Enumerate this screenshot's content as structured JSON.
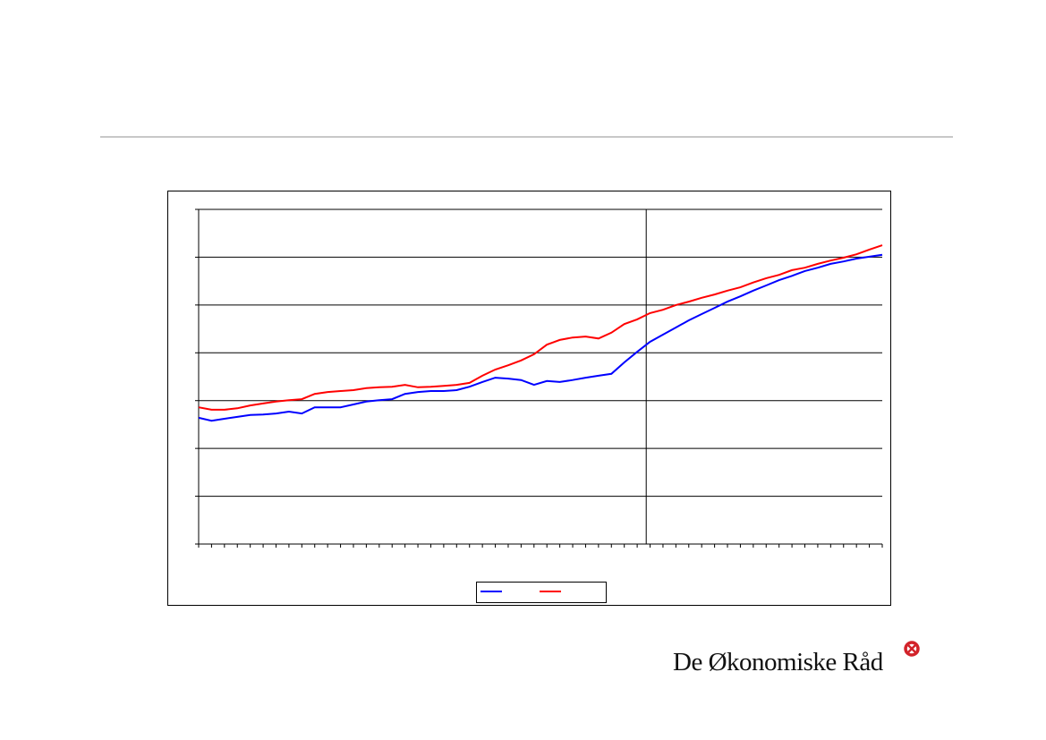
{
  "logo": "De Økonomiske Råd",
  "chart_data": {
    "type": "line",
    "x": [
      0,
      1,
      2,
      3,
      4,
      5,
      6,
      7,
      8,
      9,
      10,
      11,
      12,
      13,
      14,
      15,
      16,
      17,
      18,
      19,
      20,
      21,
      22,
      23,
      24,
      25,
      26,
      27,
      28,
      29,
      30,
      31,
      32,
      33,
      34,
      35,
      36,
      37,
      38,
      39,
      40,
      41,
      42,
      43,
      44,
      45,
      46,
      47,
      48,
      49,
      50,
      51,
      52,
      53
    ],
    "xlim": [
      0,
      53
    ],
    "xticks": [
      0,
      1,
      2,
      3,
      4,
      5,
      6,
      7,
      8,
      9,
      10,
      11,
      12,
      13,
      14,
      15,
      16,
      17,
      18,
      19,
      20,
      21,
      22,
      23,
      24,
      25,
      26,
      27,
      28,
      29,
      30,
      31,
      32,
      33,
      34,
      35,
      36,
      37,
      38,
      39,
      40,
      41,
      42,
      43,
      44,
      45,
      46,
      47,
      48,
      49,
      50,
      51,
      52,
      53
    ],
    "ylim": [
      0,
      7
    ],
    "yticks": [
      0,
      1,
      2,
      3,
      4,
      5,
      6,
      7
    ],
    "grid": true,
    "vline_x": 34.7,
    "series": [
      {
        "color": "#0000ff",
        "values": [
          2.64,
          2.58,
          2.62,
          2.66,
          2.7,
          2.71,
          2.73,
          2.77,
          2.73,
          2.86,
          2.86,
          2.86,
          2.92,
          2.98,
          3.01,
          3.03,
          3.14,
          3.18,
          3.2,
          3.2,
          3.22,
          3.29,
          3.39,
          3.48,
          3.46,
          3.43,
          3.33,
          3.41,
          3.39,
          3.43,
          3.48,
          3.52,
          3.56,
          3.8,
          4.02,
          4.23,
          4.38,
          4.53,
          4.68,
          4.81,
          4.94,
          5.07,
          5.18,
          5.3,
          5.41,
          5.52,
          5.61,
          5.71,
          5.78,
          5.86,
          5.91,
          5.97,
          6.01,
          6.05
        ]
      },
      {
        "color": "#ff0000",
        "values": [
          2.86,
          2.81,
          2.81,
          2.84,
          2.9,
          2.94,
          2.98,
          3.01,
          3.03,
          3.14,
          3.18,
          3.2,
          3.22,
          3.26,
          3.28,
          3.29,
          3.33,
          3.28,
          3.29,
          3.31,
          3.33,
          3.37,
          3.52,
          3.65,
          3.74,
          3.84,
          3.97,
          4.17,
          4.27,
          4.32,
          4.34,
          4.3,
          4.42,
          4.6,
          4.7,
          4.83,
          4.9,
          5.0,
          5.07,
          5.15,
          5.22,
          5.3,
          5.37,
          5.47,
          5.56,
          5.63,
          5.73,
          5.78,
          5.86,
          5.93,
          5.99,
          6.06,
          6.16,
          6.25
        ]
      }
    ]
  }
}
